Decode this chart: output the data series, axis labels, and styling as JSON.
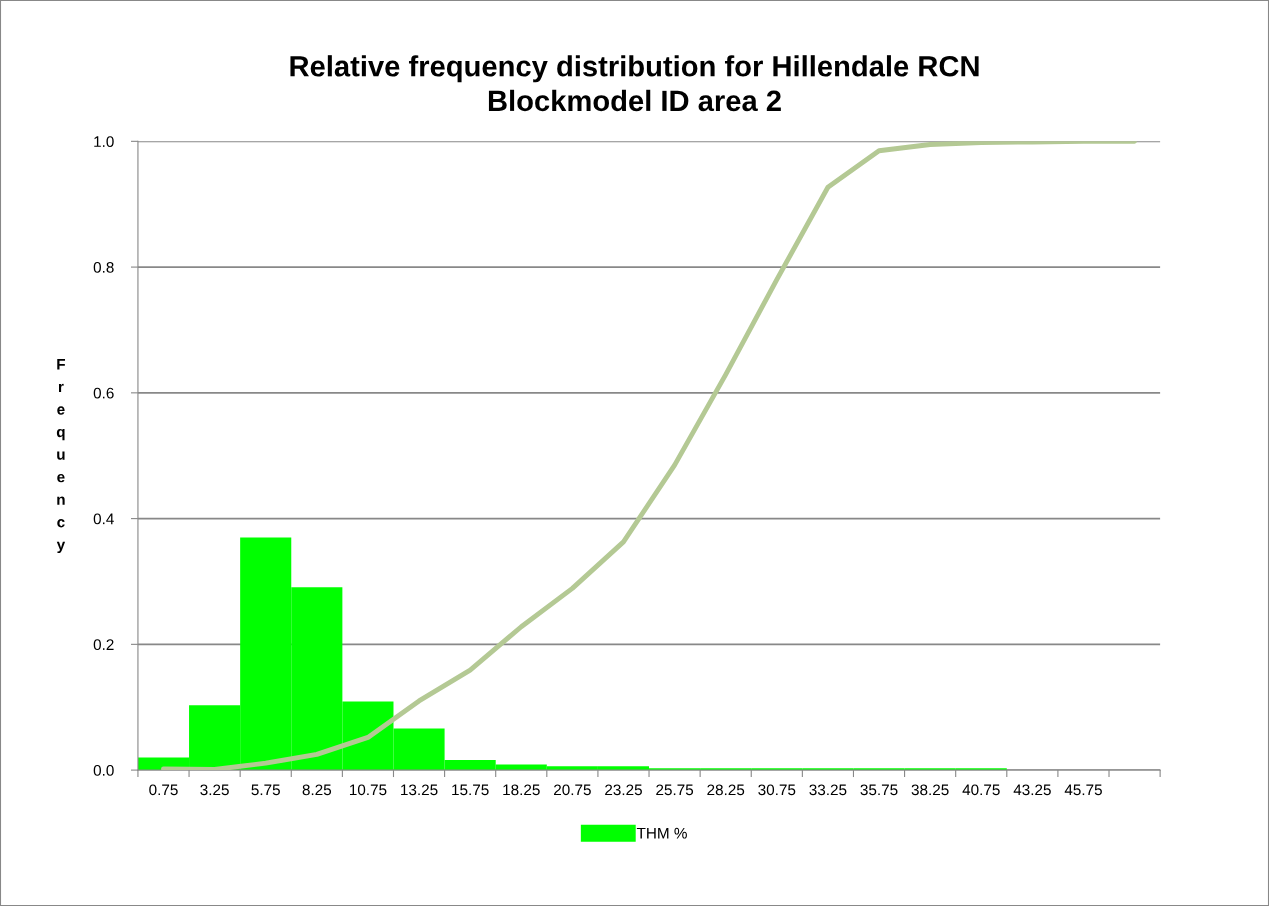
{
  "chart_data": {
    "type": "bar",
    "title": "Relative frequency distribution for Hillendale RCN\nBlockmodel ID area 2",
    "ylabel": "Frequency",
    "categories": [
      "0.75",
      "3.25",
      "5.75",
      "8.25",
      "10.75",
      "13.25",
      "15.75",
      "18.25",
      "20.75",
      "23.25",
      "25.75",
      "28.25",
      "30.75",
      "33.25",
      "35.75",
      "38.25",
      "40.75",
      "43.25",
      "45.75",
      null
    ],
    "series": [
      {
        "name": "THM %",
        "color": "#00ff00",
        "values": [
          0.02,
          0.103,
          0.37,
          0.291,
          0.109,
          0.066,
          0.016,
          0.009,
          0.006,
          0.006,
          0.003,
          0.003,
          0.003,
          0.003,
          0.003,
          0.003,
          0.003,
          0,
          0,
          0
        ]
      },
      {
        "type": "line",
        "color": "#b4c994",
        "values": [
          0.002,
          0.001,
          0.011,
          0.025,
          0.052,
          0.11,
          0.159,
          0.228,
          0.289,
          0.363,
          0.485,
          0.629,
          0.78,
          0.927,
          0.985,
          0.995,
          0.998,
          0.999,
          1.0,
          1.0
        ]
      }
    ],
    "ylim": [
      0,
      1.0
    ],
    "yticks": [
      {
        "value": 0,
        "label": "0.0"
      },
      {
        "value": 0.2,
        "label": "0.2"
      },
      {
        "value": 0.4,
        "label": "0.4"
      },
      {
        "value": 0.6,
        "label": "0.6"
      },
      {
        "value": 0.8,
        "label": "0.8"
      },
      {
        "value": 1.0,
        "label": "1.0"
      }
    ],
    "grid": "y",
    "legend": "bottom",
    "line_style": "solid",
    "marker": "none"
  }
}
